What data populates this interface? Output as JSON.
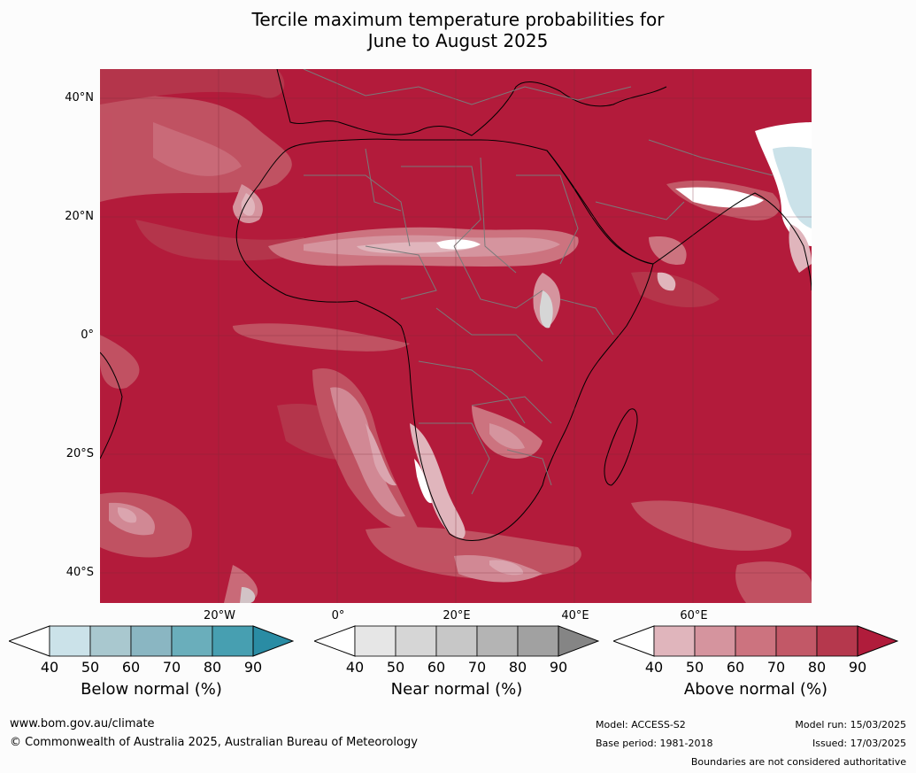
{
  "title": {
    "line1": "Tercile maximum temperature probabilities for",
    "line2": "June to August 2025"
  },
  "map": {
    "lat_labels": [
      "40°N",
      "20°N",
      "0°",
      "20°S",
      "40°S"
    ],
    "lon_labels": [
      "20°W",
      "0°",
      "20°E",
      "40°E",
      "60°E"
    ]
  },
  "legends": [
    {
      "label": "Below normal (%)",
      "ticks": [
        "40",
        "50",
        "60",
        "70",
        "80",
        "90"
      ],
      "colors": [
        "#ffffff",
        "#cbe2e9",
        "#a9c8cf",
        "#8ab6c2",
        "#6aaebb",
        "#479fb1",
        "#2a8ca4"
      ]
    },
    {
      "label": "Near normal (%)",
      "ticks": [
        "40",
        "50",
        "60",
        "70",
        "80",
        "90"
      ],
      "colors": [
        "#ffffff",
        "#e6e6e6",
        "#d6d6d6",
        "#c7c7c7",
        "#b4b4b4",
        "#a1a1a1",
        "#858585"
      ]
    },
    {
      "label": "Above normal (%)",
      "ticks": [
        "40",
        "50",
        "60",
        "70",
        "80",
        "90"
      ],
      "colors": [
        "#ffffff",
        "#e0b5bc",
        "#d5949e",
        "#cc737f",
        "#c25867",
        "#b5384d",
        "#b01c3b"
      ]
    }
  ],
  "footer": {
    "website": "www.bom.gov.au/climate",
    "copyright": "© Commonwealth of Australia 2025, Australian Bureau of Meteorology",
    "model": "Model: ACCESS-S2",
    "base_period": "Base period: 1981-2018",
    "model_run": "Model run: 15/03/2025",
    "issued": "Issued: 17/03/2025",
    "disclaimer": "Boundaries are not considered authoritative"
  },
  "colors": {
    "above_90": "#b31b3b",
    "above_80": "#b5384d",
    "above_70": "#c25867",
    "above_60": "#cc737f",
    "above_50": "#d5949e",
    "above_40": "#e0b5bc",
    "near": "#d6d6d6",
    "below": "#cbe2e9"
  }
}
